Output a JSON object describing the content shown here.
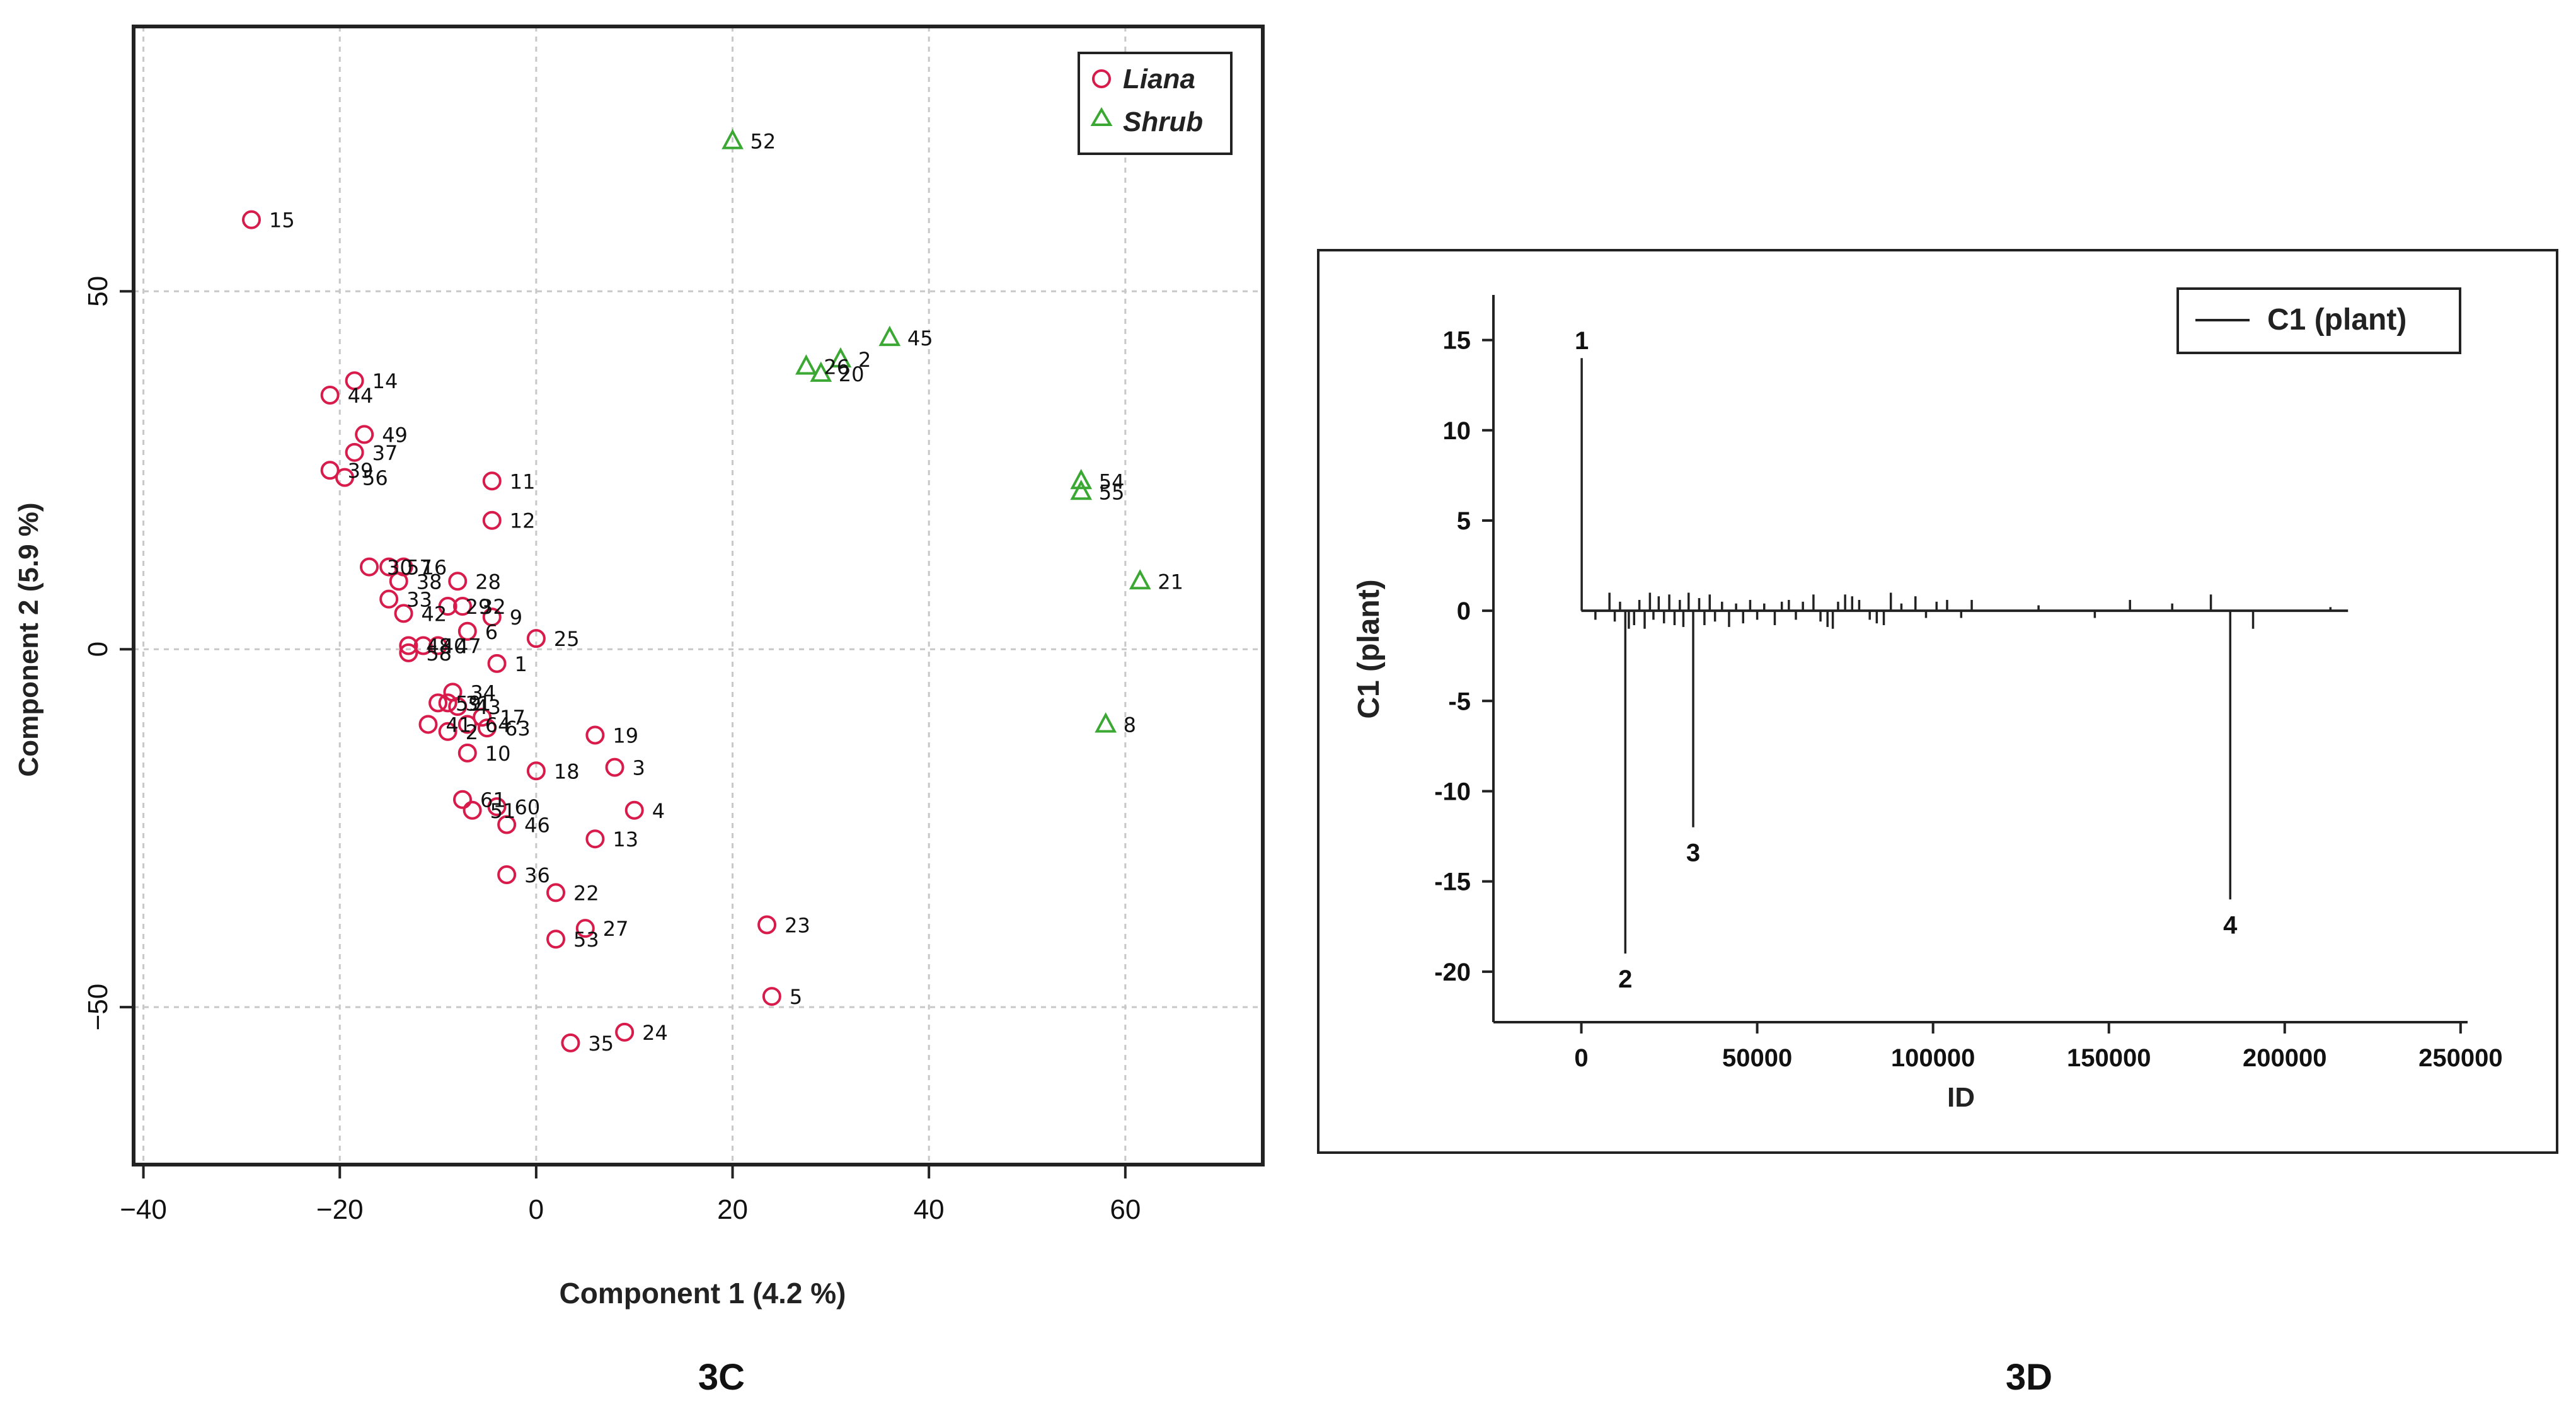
{
  "colors": {
    "liana": "#d81b4a",
    "shrub": "#3aa832",
    "grid": "#c8c8c8",
    "axis": "#222222"
  },
  "chart_data": [
    {
      "type": "scatter",
      "panel": "3C",
      "caption": "3C",
      "xlabel": "Component 1 (4.2 %)",
      "ylabel": "Component 2 (5.9 %)",
      "xlim": [
        -41,
        74
      ],
      "ylim": [
        -72,
        87
      ],
      "xticks": [
        -40,
        -20,
        0,
        20,
        40,
        60
      ],
      "yticks": [
        -50,
        0,
        50
      ],
      "xtick_labels": [
        "−40",
        "−20",
        "0",
        "20",
        "40",
        "60"
      ],
      "ytick_labels": [
        "−50",
        "0",
        "50"
      ],
      "grid": true,
      "legend_position": "top-right",
      "series": [
        {
          "name": "Liana",
          "marker": "circle",
          "points": [
            {
              "x": -29,
              "y": 60,
              "label": "15"
            },
            {
              "x": -18.5,
              "y": 37.5,
              "label": "14"
            },
            {
              "x": -21,
              "y": 35.5,
              "label": "44"
            },
            {
              "x": -17.5,
              "y": 30,
              "label": "49"
            },
            {
              "x": -18.5,
              "y": 27.5,
              "label": "37"
            },
            {
              "x": -21,
              "y": 25,
              "label": "39"
            },
            {
              "x": -19.5,
              "y": 24,
              "label": "56"
            },
            {
              "x": -4.5,
              "y": 23.5,
              "label": "11"
            },
            {
              "x": -4.5,
              "y": 18,
              "label": "12"
            },
            {
              "x": -17,
              "y": 11.5,
              "label": "30"
            },
            {
              "x": -15,
              "y": 11.5,
              "label": "57"
            },
            {
              "x": -13.5,
              "y": 11.5,
              "label": "16"
            },
            {
              "x": -14,
              "y": 9.5,
              "label": "38"
            },
            {
              "x": -8,
              "y": 9.5,
              "label": "28"
            },
            {
              "x": -15,
              "y": 7,
              "label": "33"
            },
            {
              "x": -9,
              "y": 6,
              "label": "29"
            },
            {
              "x": -7.5,
              "y": 6,
              "label": "32"
            },
            {
              "x": -13.5,
              "y": 5,
              "label": "42"
            },
            {
              "x": -4.5,
              "y": 4.5,
              "label": "9"
            },
            {
              "x": -7,
              "y": 2.5,
              "label": "6"
            },
            {
              "x": 0,
              "y": 1.5,
              "label": "25"
            },
            {
              "x": -13,
              "y": 0.5,
              "label": "48"
            },
            {
              "x": -11.5,
              "y": 0.5,
              "label": "40"
            },
            {
              "x": -10,
              "y": 0.5,
              "label": "47"
            },
            {
              "x": -13,
              "y": -0.5,
              "label": "58"
            },
            {
              "x": -4,
              "y": -2,
              "label": "1"
            },
            {
              "x": -8.5,
              "y": -6,
              "label": "34"
            },
            {
              "x": -10,
              "y": -7.5,
              "label": "59"
            },
            {
              "x": -9,
              "y": -7.5,
              "label": "31"
            },
            {
              "x": -8,
              "y": -8,
              "label": "43"
            },
            {
              "x": -5.5,
              "y": -9.5,
              "label": "17"
            },
            {
              "x": -11,
              "y": -10.5,
              "label": "41"
            },
            {
              "x": -7,
              "y": -10.5,
              "label": "64"
            },
            {
              "x": -5,
              "y": -11,
              "label": "63"
            },
            {
              "x": -9,
              "y": -11.5,
              "label": "2"
            },
            {
              "x": 6,
              "y": -12,
              "label": "19"
            },
            {
              "x": -7,
              "y": -14.5,
              "label": "10"
            },
            {
              "x": 0,
              "y": -17,
              "label": "18"
            },
            {
              "x": 8,
              "y": -16.5,
              "label": "3"
            },
            {
              "x": -7.5,
              "y": -21,
              "label": "61"
            },
            {
              "x": -4,
              "y": -22,
              "label": "60"
            },
            {
              "x": -6.5,
              "y": -22.5,
              "label": "51"
            },
            {
              "x": 10,
              "y": -22.5,
              "label": "4"
            },
            {
              "x": -3,
              "y": -24.5,
              "label": "46"
            },
            {
              "x": 6,
              "y": -26.5,
              "label": "13"
            },
            {
              "x": -3,
              "y": -31.5,
              "label": "36"
            },
            {
              "x": 2,
              "y": -34,
              "label": "22"
            },
            {
              "x": 5,
              "y": -39,
              "label": "27"
            },
            {
              "x": 2,
              "y": -40.5,
              "label": "53"
            },
            {
              "x": 23.5,
              "y": -38.5,
              "label": "23"
            },
            {
              "x": 24,
              "y": -48.5,
              "label": "5"
            },
            {
              "x": 3.5,
              "y": -55,
              "label": "35"
            },
            {
              "x": 9,
              "y": -53.5,
              "label": "24"
            }
          ]
        },
        {
          "name": "Shrub",
          "marker": "triangle",
          "points": [
            {
              "x": 20,
              "y": 71,
              "label": "52"
            },
            {
              "x": 36,
              "y": 43.5,
              "label": "45"
            },
            {
              "x": 31,
              "y": 40.5,
              "label": "2"
            },
            {
              "x": 27.5,
              "y": 39.5,
              "label": "26"
            },
            {
              "x": 29,
              "y": 38.5,
              "label": "20"
            },
            {
              "x": 55.5,
              "y": 23.5,
              "label": "54"
            },
            {
              "x": 55.5,
              "y": 22,
              "label": "55"
            },
            {
              "x": 61.5,
              "y": 9.5,
              "label": "21"
            },
            {
              "x": 58,
              "y": -10.5,
              "label": "8"
            }
          ]
        }
      ]
    },
    {
      "type": "line",
      "panel": "3D",
      "caption": "3D",
      "xlabel": "ID",
      "ylabel": "C1 (plant)",
      "xlim": [
        -25000,
        252000
      ],
      "ylim": [
        -22.8,
        17.5
      ],
      "xticks": [
        0,
        50000,
        100000,
        150000,
        200000,
        250000
      ],
      "yticks": [
        15,
        10,
        5,
        0,
        -5,
        -10,
        -15,
        -20
      ],
      "xtick_labels": [
        "0",
        "50000",
        "100000",
        "150000",
        "200000",
        "250000"
      ],
      "ytick_labels": [
        "15",
        "10",
        "5",
        "0",
        "-5",
        "-10",
        "-15",
        "-20"
      ],
      "grid": false,
      "legend_position": "top-right",
      "series": [
        {
          "name": "C1 (plant)",
          "style": "spikes",
          "x_end": 218000,
          "spikes": [
            [
              100,
              14
            ],
            [
              4000,
              -0.5
            ],
            [
              8000,
              1
            ],
            [
              9500,
              -0.6
            ],
            [
              11000,
              0.5
            ],
            [
              12500,
              -19
            ],
            [
              13500,
              -1
            ],
            [
              15000,
              -0.8
            ],
            [
              16500,
              0.6
            ],
            [
              18000,
              -1
            ],
            [
              19500,
              1
            ],
            [
              20500,
              -0.5
            ],
            [
              22000,
              0.8
            ],
            [
              23500,
              -0.7
            ],
            [
              25000,
              0.9
            ],
            [
              26500,
              -0.8
            ],
            [
              28000,
              0.6
            ],
            [
              29000,
              -0.9
            ],
            [
              30500,
              1
            ],
            [
              31800,
              -12
            ],
            [
              33500,
              0.7
            ],
            [
              35000,
              -0.8
            ],
            [
              36500,
              0.9
            ],
            [
              38000,
              -0.6
            ],
            [
              40000,
              0.5
            ],
            [
              42000,
              -0.9
            ],
            [
              44000,
              0.4
            ],
            [
              46000,
              -0.7
            ],
            [
              48000,
              0.6
            ],
            [
              50000,
              -0.5
            ],
            [
              52000,
              0.4
            ],
            [
              55000,
              -0.8
            ],
            [
              57000,
              0.5
            ],
            [
              59000,
              0.6
            ],
            [
              61000,
              -0.5
            ],
            [
              63000,
              0.5
            ],
            [
              66000,
              0.9
            ],
            [
              68000,
              -0.6
            ],
            [
              70000,
              -0.9
            ],
            [
              71500,
              -1
            ],
            [
              73000,
              0.5
            ],
            [
              75000,
              0.9
            ],
            [
              77000,
              0.8
            ],
            [
              79000,
              0.6
            ],
            [
              82000,
              -0.5
            ],
            [
              84000,
              -0.7
            ],
            [
              86000,
              -0.8
            ],
            [
              88000,
              1
            ],
            [
              91000,
              0.4
            ],
            [
              95000,
              0.8
            ],
            [
              98000,
              -0.4
            ],
            [
              101000,
              0.5
            ],
            [
              104000,
              0.6
            ],
            [
              108000,
              -0.4
            ],
            [
              111000,
              0.6
            ],
            [
              130000,
              0.3
            ],
            [
              146000,
              -0.4
            ],
            [
              156000,
              0.6
            ],
            [
              168000,
              0.4
            ],
            [
              179000,
              0.9
            ],
            [
              184500,
              -16
            ],
            [
              191000,
              -1
            ],
            [
              213000,
              0.2
            ]
          ]
        }
      ],
      "annotations": [
        {
          "x": 100,
          "y": 14,
          "text": "1"
        },
        {
          "x": 12500,
          "y": -19,
          "text": "2"
        },
        {
          "x": 31800,
          "y": -12,
          "text": "3"
        },
        {
          "x": 184500,
          "y": -16,
          "text": "4"
        }
      ]
    }
  ]
}
